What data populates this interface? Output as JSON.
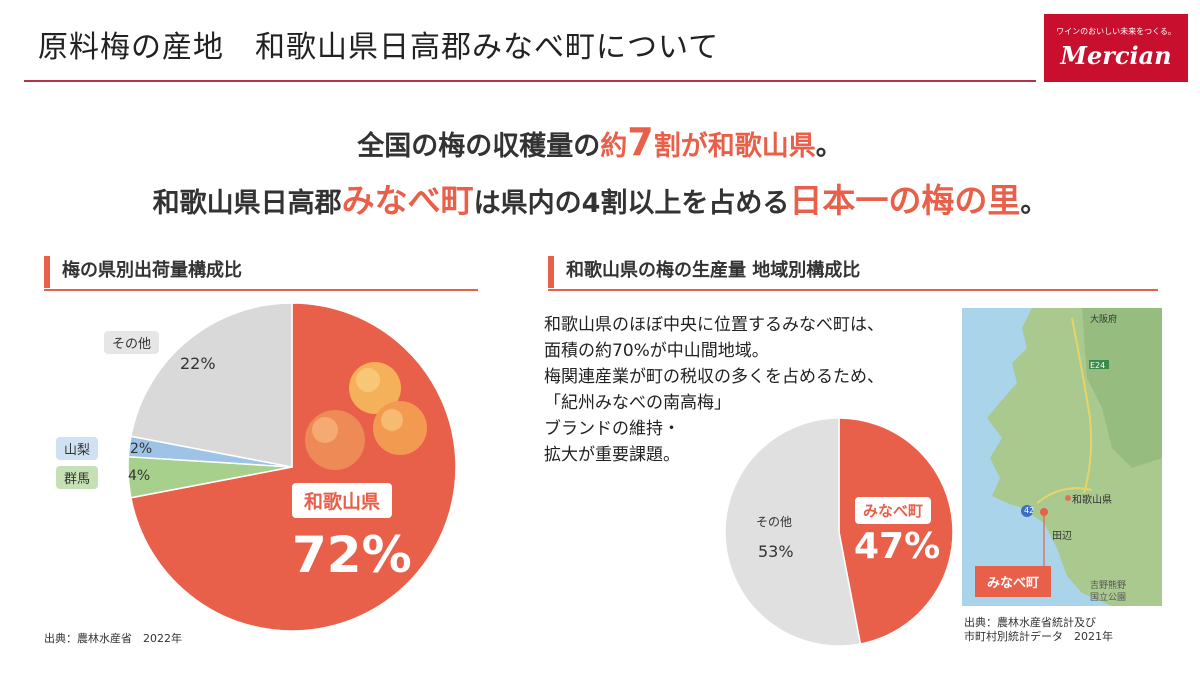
{
  "header": {
    "title": "原料梅の産地　和歌山県日高郡みなべ町について",
    "logo_tagline": "ワインのおいしい未来をつくる。",
    "logo_name": "Mercian"
  },
  "headline": {
    "line1_a": "全国の梅の収穫量の",
    "line1_b": "約",
    "line1_c": "7",
    "line1_d": "割が和歌山県",
    "line1_e": "。",
    "line2_a": "和歌山県日高郡",
    "line2_b": "みなべ町",
    "line2_c": "は県内の4割以上を占める",
    "line2_d": "日本一の梅の里",
    "line2_e": "。"
  },
  "left_section": {
    "heading": "梅の県別出荷量構成比",
    "label_other": "その他",
    "label_yamanashi": "山梨",
    "label_gunma": "群馬",
    "label_wakayama": "和歌山県",
    "pct_other": "22%",
    "pct_yamanashi": "2%",
    "pct_gunma": "4%",
    "pct_wakayama": "72%",
    "source": "出典：農林水産省　2022年"
  },
  "right_section": {
    "heading": "和歌山県の梅の生産量 地域別構成比",
    "desc_line1": "和歌山県のほぼ中央に位置するみなべ町は、",
    "desc_line2": "面積の約70%が中山間地域。",
    "desc_line3": "梅関連産業が町の税収の多くを占めるため、",
    "desc_line4": "「紀州みなべの南高梅」",
    "desc_line5": "ブランドの維持・",
    "desc_line6": "拡大が重要課題。",
    "label_other": "その他",
    "label_minabe": "みなべ町",
    "pct_other": "53%",
    "pct_minabe": "47%",
    "source_line1": "出典：農林水産省統計及び",
    "source_line2": "市町村別統計データ　2021年"
  },
  "map": {
    "label_osaka": "大阪府",
    "label_wakayama": "和歌山県",
    "label_tanabe": "田辺",
    "label_park1": "吉野熊野",
    "label_park2": "国立公園",
    "road_e24": "E24",
    "road_42": "42",
    "marker_label": "みなべ町"
  },
  "chart_data": [
    {
      "type": "pie",
      "title": "梅の県別出荷量構成比",
      "categories": [
        "和歌山県",
        "群馬",
        "山梨",
        "その他"
      ],
      "values": [
        72,
        4,
        2,
        22
      ],
      "colors": [
        "#e8604a",
        "#a8d08d",
        "#9dc3e6",
        "#d9d9d9"
      ]
    },
    {
      "type": "pie",
      "title": "和歌山県の梅の生産量 地域別構成比",
      "categories": [
        "みなべ町",
        "その他"
      ],
      "values": [
        47,
        53
      ],
      "colors": [
        "#e8604a",
        "#e0e0e0"
      ]
    }
  ]
}
